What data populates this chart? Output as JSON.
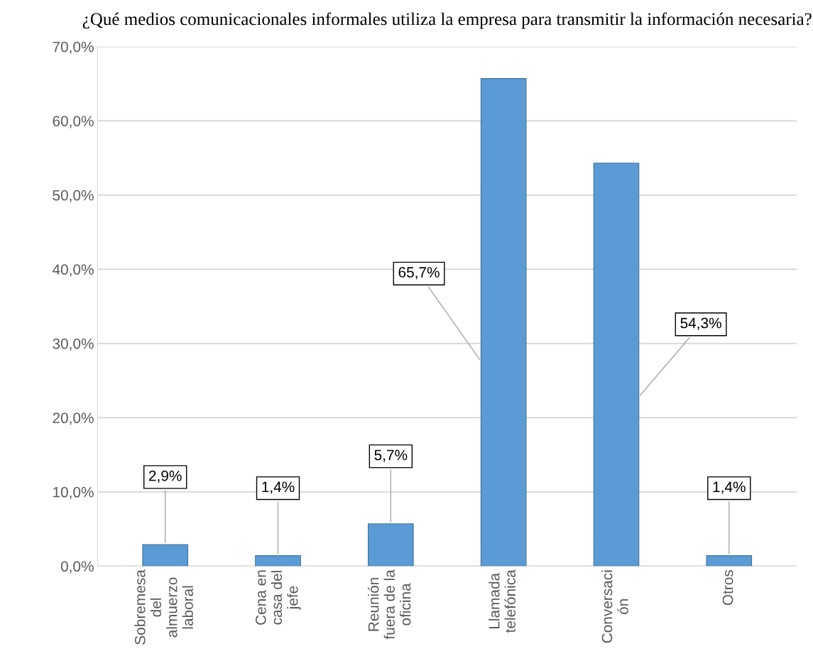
{
  "chart_data": {
    "type": "bar",
    "title": "¿Qué medios comunicacionales informales utiliza la empresa para transmitir la información necesaria?",
    "categories": [
      "Sobremesa\ndel\nalmuerzo\nlaboral",
      "Cena en\ncasa del\njefe",
      "Reunión\nfuera de la\noficina",
      "Llamada\ntelefónica",
      "Conversaci\nón",
      "Otros"
    ],
    "values": [
      2.9,
      1.4,
      5.7,
      65.7,
      54.3,
      1.4
    ],
    "value_labels": [
      "2,9%",
      "1,4%",
      "5,7%",
      "65,7%",
      "54,3%",
      "1,4%"
    ],
    "color": "#5b9bd5",
    "ylim": [
      0,
      70
    ],
    "yticks": [
      {
        "value": 0,
        "label": "0,0%"
      },
      {
        "value": 10,
        "label": "10,0%"
      },
      {
        "value": 20,
        "label": "20,0%"
      },
      {
        "value": 30,
        "label": "30,0%"
      },
      {
        "value": 40,
        "label": "40,0%"
      },
      {
        "value": 50,
        "label": "50,0%"
      },
      {
        "value": 60,
        "label": "60,0%"
      },
      {
        "value": 70,
        "label": "70,0%"
      }
    ],
    "grid": "y",
    "legend": false
  }
}
